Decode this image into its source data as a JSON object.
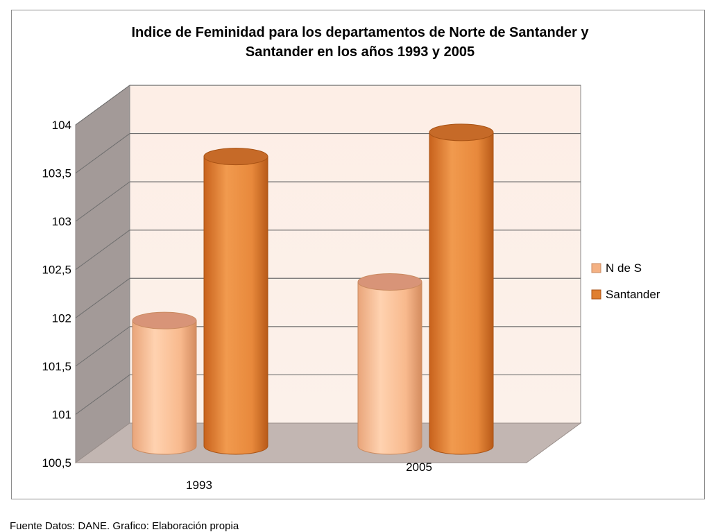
{
  "chart_data": {
    "type": "bar",
    "title": "Indice de Feminidad para los departamentos de Norte de Santander y Santander en los años 1993 y 2005",
    "title_lines": [
      "Indice de Feminidad para los departamentos de Norte de Santander y",
      "Santander en los años 1993 y 2005"
    ],
    "categories": [
      "1993",
      "2005"
    ],
    "series": [
      {
        "name": "N de S",
        "values": [
          101.8,
          102.2
        ],
        "color": "#f4b183"
      },
      {
        "name": "Santander",
        "values": [
          103.5,
          103.75
        ],
        "color": "#e07f2f"
      }
    ],
    "ylim": [
      100.5,
      104
    ],
    "yticks": [
      "100,5",
      "101",
      "101,5",
      "102",
      "102,5",
      "103",
      "103,5",
      "104"
    ],
    "xlabel": "",
    "ylabel": "",
    "grid": true,
    "legend": "right",
    "style": "3d-cylinder"
  },
  "footer": {
    "source": "Fuente Datos: DANE. Grafico: Elaboración propia"
  }
}
